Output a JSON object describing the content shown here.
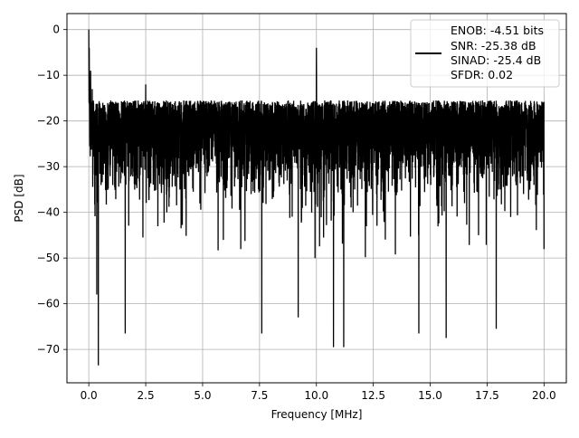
{
  "chart_data": {
    "type": "line",
    "title": "",
    "xlabel": "Frequency [MHz]",
    "ylabel": "PSD [dB]",
    "xlim": [
      -0.96,
      20.98
    ],
    "ylim": [
      -77.3,
      3.5
    ],
    "xticks": [
      0.0,
      2.5,
      5.0,
      7.5,
      10.0,
      12.5,
      15.0,
      17.5,
      20.0
    ],
    "xtick_labels": [
      "0.0",
      "2.5",
      "5.0",
      "7.5",
      "10.0",
      "12.5",
      "15.0",
      "17.5",
      "20.0"
    ],
    "yticks": [
      0,
      -10,
      -20,
      -30,
      -40,
      -50,
      -60,
      -70
    ],
    "ytick_labels": [
      "0",
      "−10",
      "−20",
      "−30",
      "−40",
      "−50",
      "−60",
      "−70"
    ],
    "grid": true,
    "legend_position": "top-right",
    "legend_lines": [
      "ENOB: -4.51 bits",
      "SNR: -25.38 dB",
      "SINAD: -25.4 dB",
      "SFDR: 0.02"
    ],
    "series": [
      {
        "color": "#000000",
        "description": "dense noise floor spanning roughly -50 dB to -16 dB from 0 to 20 MHz",
        "band_x": [
          0.0,
          20.0
        ],
        "band_upper_typical": -17,
        "band_lower_typical": -48,
        "peaks": [
          {
            "x": 0.0,
            "y": 0.0
          },
          {
            "x": 0.02,
            "y": -4
          },
          {
            "x": 0.08,
            "y": -9
          },
          {
            "x": 0.15,
            "y": -13
          },
          {
            "x": 2.5,
            "y": -12
          },
          {
            "x": 10.0,
            "y": -4
          }
        ],
        "dips": [
          {
            "x": 0.35,
            "y": -58
          },
          {
            "x": 0.42,
            "y": -73.5
          },
          {
            "x": 1.6,
            "y": -66.5
          },
          {
            "x": 7.6,
            "y": -66.5
          },
          {
            "x": 9.2,
            "y": -63
          },
          {
            "x": 10.75,
            "y": -69.5
          },
          {
            "x": 11.2,
            "y": -69.5
          },
          {
            "x": 14.5,
            "y": -66.5
          },
          {
            "x": 15.7,
            "y": -67.5
          },
          {
            "x": 17.9,
            "y": -65.5
          }
        ]
      }
    ]
  }
}
